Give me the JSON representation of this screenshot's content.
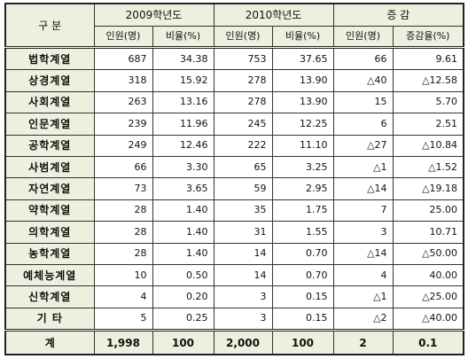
{
  "header": {
    "category": "구  분",
    "year_2009": "2009학년도",
    "year_2010": "2010학년도",
    "change": "증  감",
    "count_label": "인원(명)",
    "ratio_label": "비율(%)",
    "change_ratio_label": "증감율(%)"
  },
  "rows": [
    {
      "name": "법학계열",
      "c09": "687",
      "r09": "34.38",
      "c10": "753",
      "r10": "37.65",
      "dc": "66",
      "dr": "9.61"
    },
    {
      "name": "상경계열",
      "c09": "318",
      "r09": "15.92",
      "c10": "278",
      "r10": "13.90",
      "dc": "△40",
      "dr": "△12.58"
    },
    {
      "name": "사회계열",
      "c09": "263",
      "r09": "13.16",
      "c10": "278",
      "r10": "13.90",
      "dc": "15",
      "dr": "5.70"
    },
    {
      "name": "인문계열",
      "c09": "239",
      "r09": "11.96",
      "c10": "245",
      "r10": "12.25",
      "dc": "6",
      "dr": "2.51"
    },
    {
      "name": "공학계열",
      "c09": "249",
      "r09": "12.46",
      "c10": "222",
      "r10": "11.10",
      "dc": "△27",
      "dr": "△10.84"
    },
    {
      "name": "사범계열",
      "c09": "66",
      "r09": "3.30",
      "c10": "65",
      "r10": "3.25",
      "dc": "△1",
      "dr": "△1.52"
    },
    {
      "name": "자연계열",
      "c09": "73",
      "r09": "3.65",
      "c10": "59",
      "r10": "2.95",
      "dc": "△14",
      "dr": "△19.18"
    },
    {
      "name": "약학계열",
      "c09": "28",
      "r09": "1.40",
      "c10": "35",
      "r10": "1.75",
      "dc": "7",
      "dr": "25.00"
    },
    {
      "name": "의학계열",
      "c09": "28",
      "r09": "1.40",
      "c10": "31",
      "r10": "1.55",
      "dc": "3",
      "dr": "10.71"
    },
    {
      "name": "농학계열",
      "c09": "28",
      "r09": "1.40",
      "c10": "14",
      "r10": "0.70",
      "dc": "△14",
      "dr": "△50.00"
    },
    {
      "name": "예체능계열",
      "c09": "10",
      "c10": "14",
      "r09": "0.50",
      "r10": "0.70",
      "dc": "4",
      "dr": "40.00"
    },
    {
      "name": "신학계열",
      "c09": "4",
      "r09": "0.20",
      "c10": "3",
      "r10": "0.15",
      "dc": "△1",
      "dr": "△25.00"
    },
    {
      "name": "기    타",
      "c09": "5",
      "r09": "0.25",
      "c10": "3",
      "r10": "0.15",
      "dc": "△2",
      "dr": "△40.00"
    }
  ],
  "total": {
    "name": "계",
    "c09": "1,998",
    "r09": "100",
    "c10": "2,000",
    "r10": "100",
    "dc": "2",
    "dr": "0.1"
  }
}
